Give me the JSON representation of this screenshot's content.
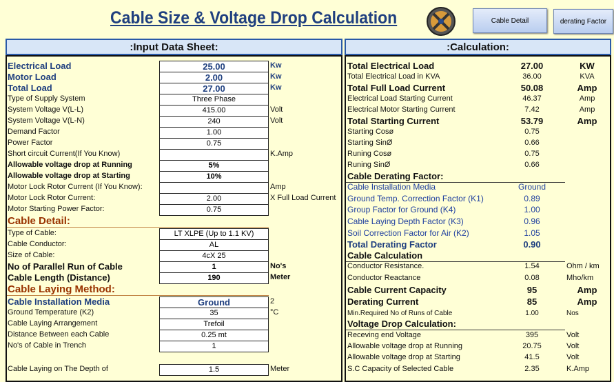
{
  "header": {
    "title": "Cable Size & Voltage Drop Calculation",
    "buttons": [
      "Cable Detail",
      "derating Factor"
    ]
  },
  "input": {
    "heading": ":Input Data Sheet:",
    "rows": [
      {
        "label": "Electrical Load",
        "value": "25.00",
        "unit": "Kw"
      },
      {
        "label": "Motor Load",
        "value": "2.00",
        "unit": "Kw"
      },
      {
        "label": "Total Load",
        "value": "27.00",
        "unit": "Kw"
      },
      {
        "label": "Type of Supply System",
        "value": "Three Phase"
      },
      {
        "label": "System Voltage  V(L-L)",
        "value": "415.00",
        "unit": "Volt"
      },
      {
        "label": "System Voltage  V(L-N)",
        "value": "240",
        "unit": "Volt"
      },
      {
        "label": "Demand Factor",
        "value": "1.00"
      },
      {
        "label": "Power Factor",
        "value": "0.75"
      },
      {
        "label": "Short circuit Current(If You Know)",
        "unit": "K.Amp"
      },
      {
        "label": "Allowable voltage drop at Running",
        "value": "5%"
      },
      {
        "label": "Allowable voltage drop at Starting",
        "value": "10%"
      },
      {
        "label": "Motor Lock Rotor Current (If You Know):",
        "unit": "Amp"
      },
      {
        "label": "Motor Lock Rotor Current:",
        "value": "2.00",
        "unit": "X Full Load Current"
      },
      {
        "label": "Motor Starting Power Factor:",
        "value": "0.75"
      },
      {
        "section": "Cable Detail:"
      },
      {
        "label": "Type of Cable:",
        "value": "LT XLPE (Up to 1.1 KV)"
      },
      {
        "label": "Cable Conductor:",
        "value": "AL"
      },
      {
        "label": "Size of Cable:",
        "value": "4cX 25"
      },
      {
        "label": "No of Parallel Run of Cable",
        "value": "1",
        "unit": "No's"
      },
      {
        "label": "Cable Length (Distance)",
        "value": "190",
        "unit": "Meter"
      },
      {
        "section": "Cable Laying Method:"
      },
      {
        "label": "Cable Installation Media",
        "value": "Ground",
        "unit": "2"
      },
      {
        "label": "Ground Temperature (K2)",
        "value": "35",
        "unit": "°C"
      },
      {
        "label": "Cable Laying Arrangement",
        "value": "Trefoil"
      },
      {
        "label": "Distance Between each Cable",
        "value": "0.25 mt"
      },
      {
        "label": "No's of Cable in Trench",
        "value": "1"
      },
      {
        "label": "Cable Laying on The Depth of",
        "value": "1.5",
        "unit": "Meter"
      }
    ]
  },
  "calculation": {
    "heading": ":Calculation:",
    "rows": [
      {
        "label": "Total Electrical Load",
        "value": "27.00",
        "unit": "KW"
      },
      {
        "label": "Total Electrical Load in KVA",
        "value": "36.00",
        "unit": "KVA"
      },
      {
        "label": "Total Full Load Current",
        "value": "50.08",
        "unit": "Amp"
      },
      {
        "label": "Electrical Load Starting Current",
        "value": "46.37",
        "unit": "Amp"
      },
      {
        "label": "Electrical Motor Starting Current",
        "value": "7.42",
        "unit": "Amp"
      },
      {
        "label": "Total Starting Current",
        "value": "53.79",
        "unit": "Amp"
      },
      {
        "label": "Starting Cosø",
        "value": "0.75"
      },
      {
        "label": "Starting SinØ",
        "value": "0.66"
      },
      {
        "label": "Runing Cosø",
        "value": "0.75"
      },
      {
        "label": "Runing SinØ",
        "value": "0.66"
      },
      {
        "section": "Cable Derating Factor:"
      },
      {
        "label": "Cable Installation Media",
        "value": "Ground"
      },
      {
        "label": "Ground Temp. Correction Factor (K1)",
        "value": "0.89"
      },
      {
        "label": "Group Factor for Ground (K4)",
        "value": "1.00"
      },
      {
        "label": "Cable Laying Depth Factor (K3)",
        "value": "0.96"
      },
      {
        "label": "Soil Correction Factor for Air (K2)",
        "value": "1.05"
      },
      {
        "label": "Total Derating Factor",
        "value": "0.90"
      },
      {
        "section": "Cable Calculation"
      },
      {
        "label": "Conductor Resistance.",
        "value": "1.54",
        "unit": "Ohm / km"
      },
      {
        "label": "Conductor Reactance",
        "value": "0.08",
        "unit": "Mho/km"
      },
      {
        "label": "Cable Current Capacity",
        "value": "95",
        "unit": "Amp"
      },
      {
        "label": "Derating  Current",
        "value": "85",
        "unit": "Amp"
      },
      {
        "label": "Min.Required No of Runs of Cable",
        "value": "1.00",
        "unit": "Nos"
      },
      {
        "section": "Voltage Drop Calculation:"
      },
      {
        "label": "Receving end Voltage",
        "value": "395",
        "unit": "Volt"
      },
      {
        "label": "Allowable voltage drop at Running",
        "value": "20.75",
        "unit": "Volt"
      },
      {
        "label": "Allowable voltage drop at Starting",
        "value": "41.5",
        "unit": "Volt"
      },
      {
        "label": "S.C Capacity of Selected Cable",
        "value": "2.35",
        "unit": "K.Amp"
      }
    ]
  }
}
